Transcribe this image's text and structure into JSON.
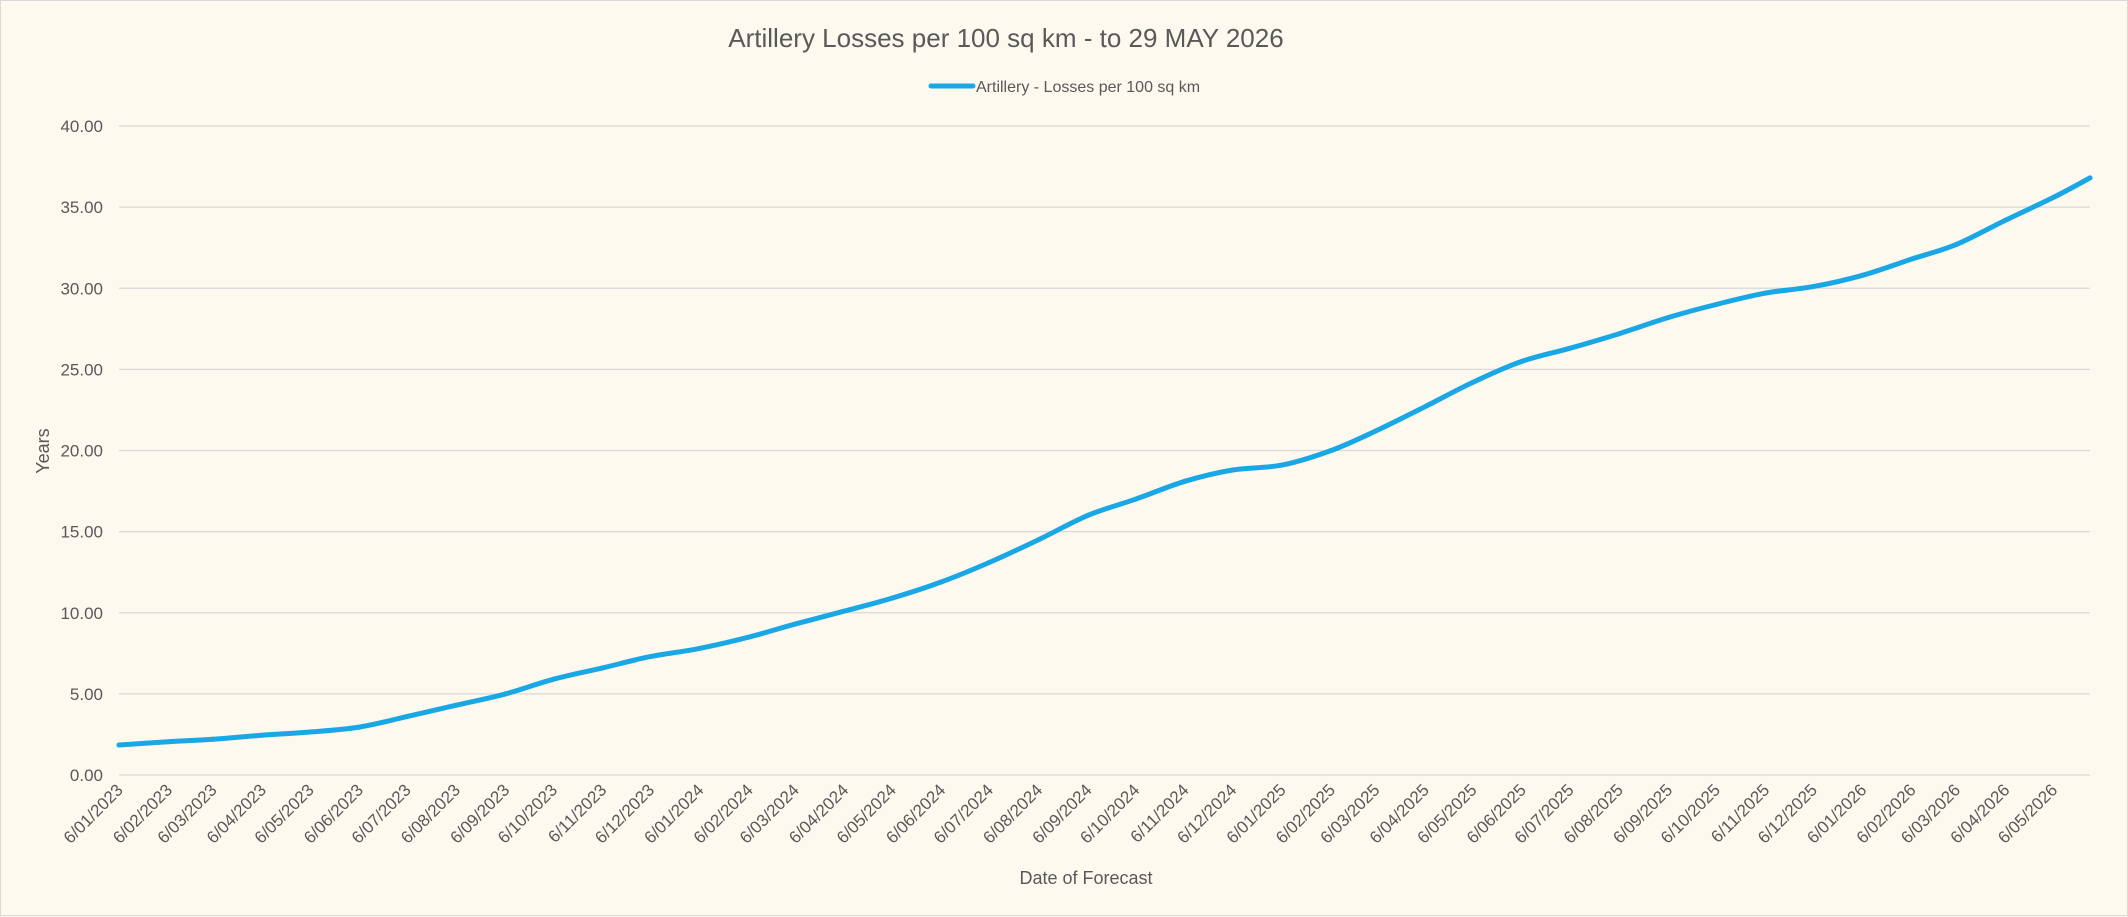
{
  "chart_data": {
    "type": "line",
    "title": "Artillery Losses per 100 sq km - to 29 MAY 2026",
    "xlabel": "Date of Forecast",
    "ylabel": "Years",
    "ylim": [
      0,
      40
    ],
    "yticks": [
      "0.00",
      "5.00",
      "10.00",
      "15.00",
      "20.00",
      "25.00",
      "30.00",
      "35.00",
      "40.00"
    ],
    "grid": true,
    "legend_position": "top-center",
    "xlim": [
      "2023-01-06",
      "2026-05-29"
    ],
    "x_tick_labels": [
      {
        "date": "2023-01-06",
        "label": "6/01/2023"
      },
      {
        "date": "2023-02-06",
        "label": "6/02/2023"
      },
      {
        "date": "2023-03-06",
        "label": "6/03/2023"
      },
      {
        "date": "2023-04-06",
        "label": "6/04/2023"
      },
      {
        "date": "2023-05-06",
        "label": "6/05/2023"
      },
      {
        "date": "2023-06-06",
        "label": "6/06/2023"
      },
      {
        "date": "2023-07-06",
        "label": "6/07/2023"
      },
      {
        "date": "2023-08-06",
        "label": "6/08/2023"
      },
      {
        "date": "2023-09-06",
        "label": "6/09/2023"
      },
      {
        "date": "2023-10-06",
        "label": "6/10/2023"
      },
      {
        "date": "2023-11-06",
        "label": "6/11/2023"
      },
      {
        "date": "2023-12-06",
        "label": "6/12/2023"
      },
      {
        "date": "2024-01-06",
        "label": "6/01/2024"
      },
      {
        "date": "2024-02-06",
        "label": "6/02/2024"
      },
      {
        "date": "2024-03-06",
        "label": "6/03/2024"
      },
      {
        "date": "2024-04-06",
        "label": "6/04/2024"
      },
      {
        "date": "2024-05-06",
        "label": "6/05/2024"
      },
      {
        "date": "2024-06-06",
        "label": "6/06/2024"
      },
      {
        "date": "2024-07-06",
        "label": "6/07/2024"
      },
      {
        "date": "2024-08-06",
        "label": "6/08/2024"
      },
      {
        "date": "2024-09-06",
        "label": "6/09/2024"
      },
      {
        "date": "2024-10-06",
        "label": "6/10/2024"
      },
      {
        "date": "2024-11-06",
        "label": "6/11/2024"
      },
      {
        "date": "2024-12-06",
        "label": "6/12/2024"
      },
      {
        "date": "2025-01-06",
        "label": "6/01/2025"
      },
      {
        "date": "2025-02-06",
        "label": "6/02/2025"
      },
      {
        "date": "2025-03-06",
        "label": "6/03/2025"
      },
      {
        "date": "2025-04-06",
        "label": "6/04/2025"
      },
      {
        "date": "2025-05-06",
        "label": "6/05/2025"
      },
      {
        "date": "2025-06-06",
        "label": "6/06/2025"
      },
      {
        "date": "2025-07-06",
        "label": "6/07/2025"
      },
      {
        "date": "2025-08-06",
        "label": "6/08/2025"
      },
      {
        "date": "2025-09-06",
        "label": "6/09/2025"
      },
      {
        "date": "2025-10-06",
        "label": "6/10/2025"
      },
      {
        "date": "2025-11-06",
        "label": "6/11/2025"
      },
      {
        "date": "2025-12-06",
        "label": "6/12/2025"
      },
      {
        "date": "2026-01-06",
        "label": "6/01/2026"
      },
      {
        "date": "2026-02-06",
        "label": "6/02/2026"
      },
      {
        "date": "2026-03-06",
        "label": "6/03/2026"
      },
      {
        "date": "2026-04-06",
        "label": "6/04/2026"
      },
      {
        "date": "2026-05-06",
        "label": "6/05/2026"
      }
    ],
    "series": [
      {
        "name": "Artillery - Losses per 100 sq km",
        "color": "#1aa7e6",
        "points": [
          [
            "2023-01-06",
            1.85
          ],
          [
            "2023-02-06",
            2.05
          ],
          [
            "2023-03-06",
            2.2
          ],
          [
            "2023-04-06",
            2.45
          ],
          [
            "2023-05-06",
            2.65
          ],
          [
            "2023-06-06",
            2.95
          ],
          [
            "2023-07-06",
            3.6
          ],
          [
            "2023-08-06",
            4.3
          ],
          [
            "2023-09-06",
            5.0
          ],
          [
            "2023-10-06",
            5.9
          ],
          [
            "2023-11-06",
            6.6
          ],
          [
            "2023-12-06",
            7.3
          ],
          [
            "2024-01-06",
            7.8
          ],
          [
            "2024-02-06",
            8.5
          ],
          [
            "2024-03-06",
            9.3
          ],
          [
            "2024-04-06",
            10.1
          ],
          [
            "2024-05-06",
            10.9
          ],
          [
            "2024-06-06",
            11.9
          ],
          [
            "2024-07-06",
            13.1
          ],
          [
            "2024-08-06",
            14.5
          ],
          [
            "2024-09-06",
            16.0
          ],
          [
            "2024-10-06",
            17.0
          ],
          [
            "2024-11-06",
            18.1
          ],
          [
            "2024-12-06",
            18.8
          ],
          [
            "2025-01-06",
            19.1
          ],
          [
            "2025-02-06",
            20.0
          ],
          [
            "2025-03-06",
            21.2
          ],
          [
            "2025-04-06",
            22.7
          ],
          [
            "2025-05-06",
            24.2
          ],
          [
            "2025-06-06",
            25.5
          ],
          [
            "2025-07-06",
            26.3
          ],
          [
            "2025-08-06",
            27.2
          ],
          [
            "2025-09-06",
            28.2
          ],
          [
            "2025-10-06",
            29.0
          ],
          [
            "2025-11-06",
            29.7
          ],
          [
            "2025-12-06",
            30.1
          ],
          [
            "2026-01-06",
            30.8
          ],
          [
            "2026-02-06",
            31.8
          ],
          [
            "2026-03-06",
            32.7
          ],
          [
            "2026-04-06",
            34.2
          ],
          [
            "2026-05-06",
            35.6
          ],
          [
            "2026-05-29",
            36.8
          ]
        ]
      }
    ]
  }
}
